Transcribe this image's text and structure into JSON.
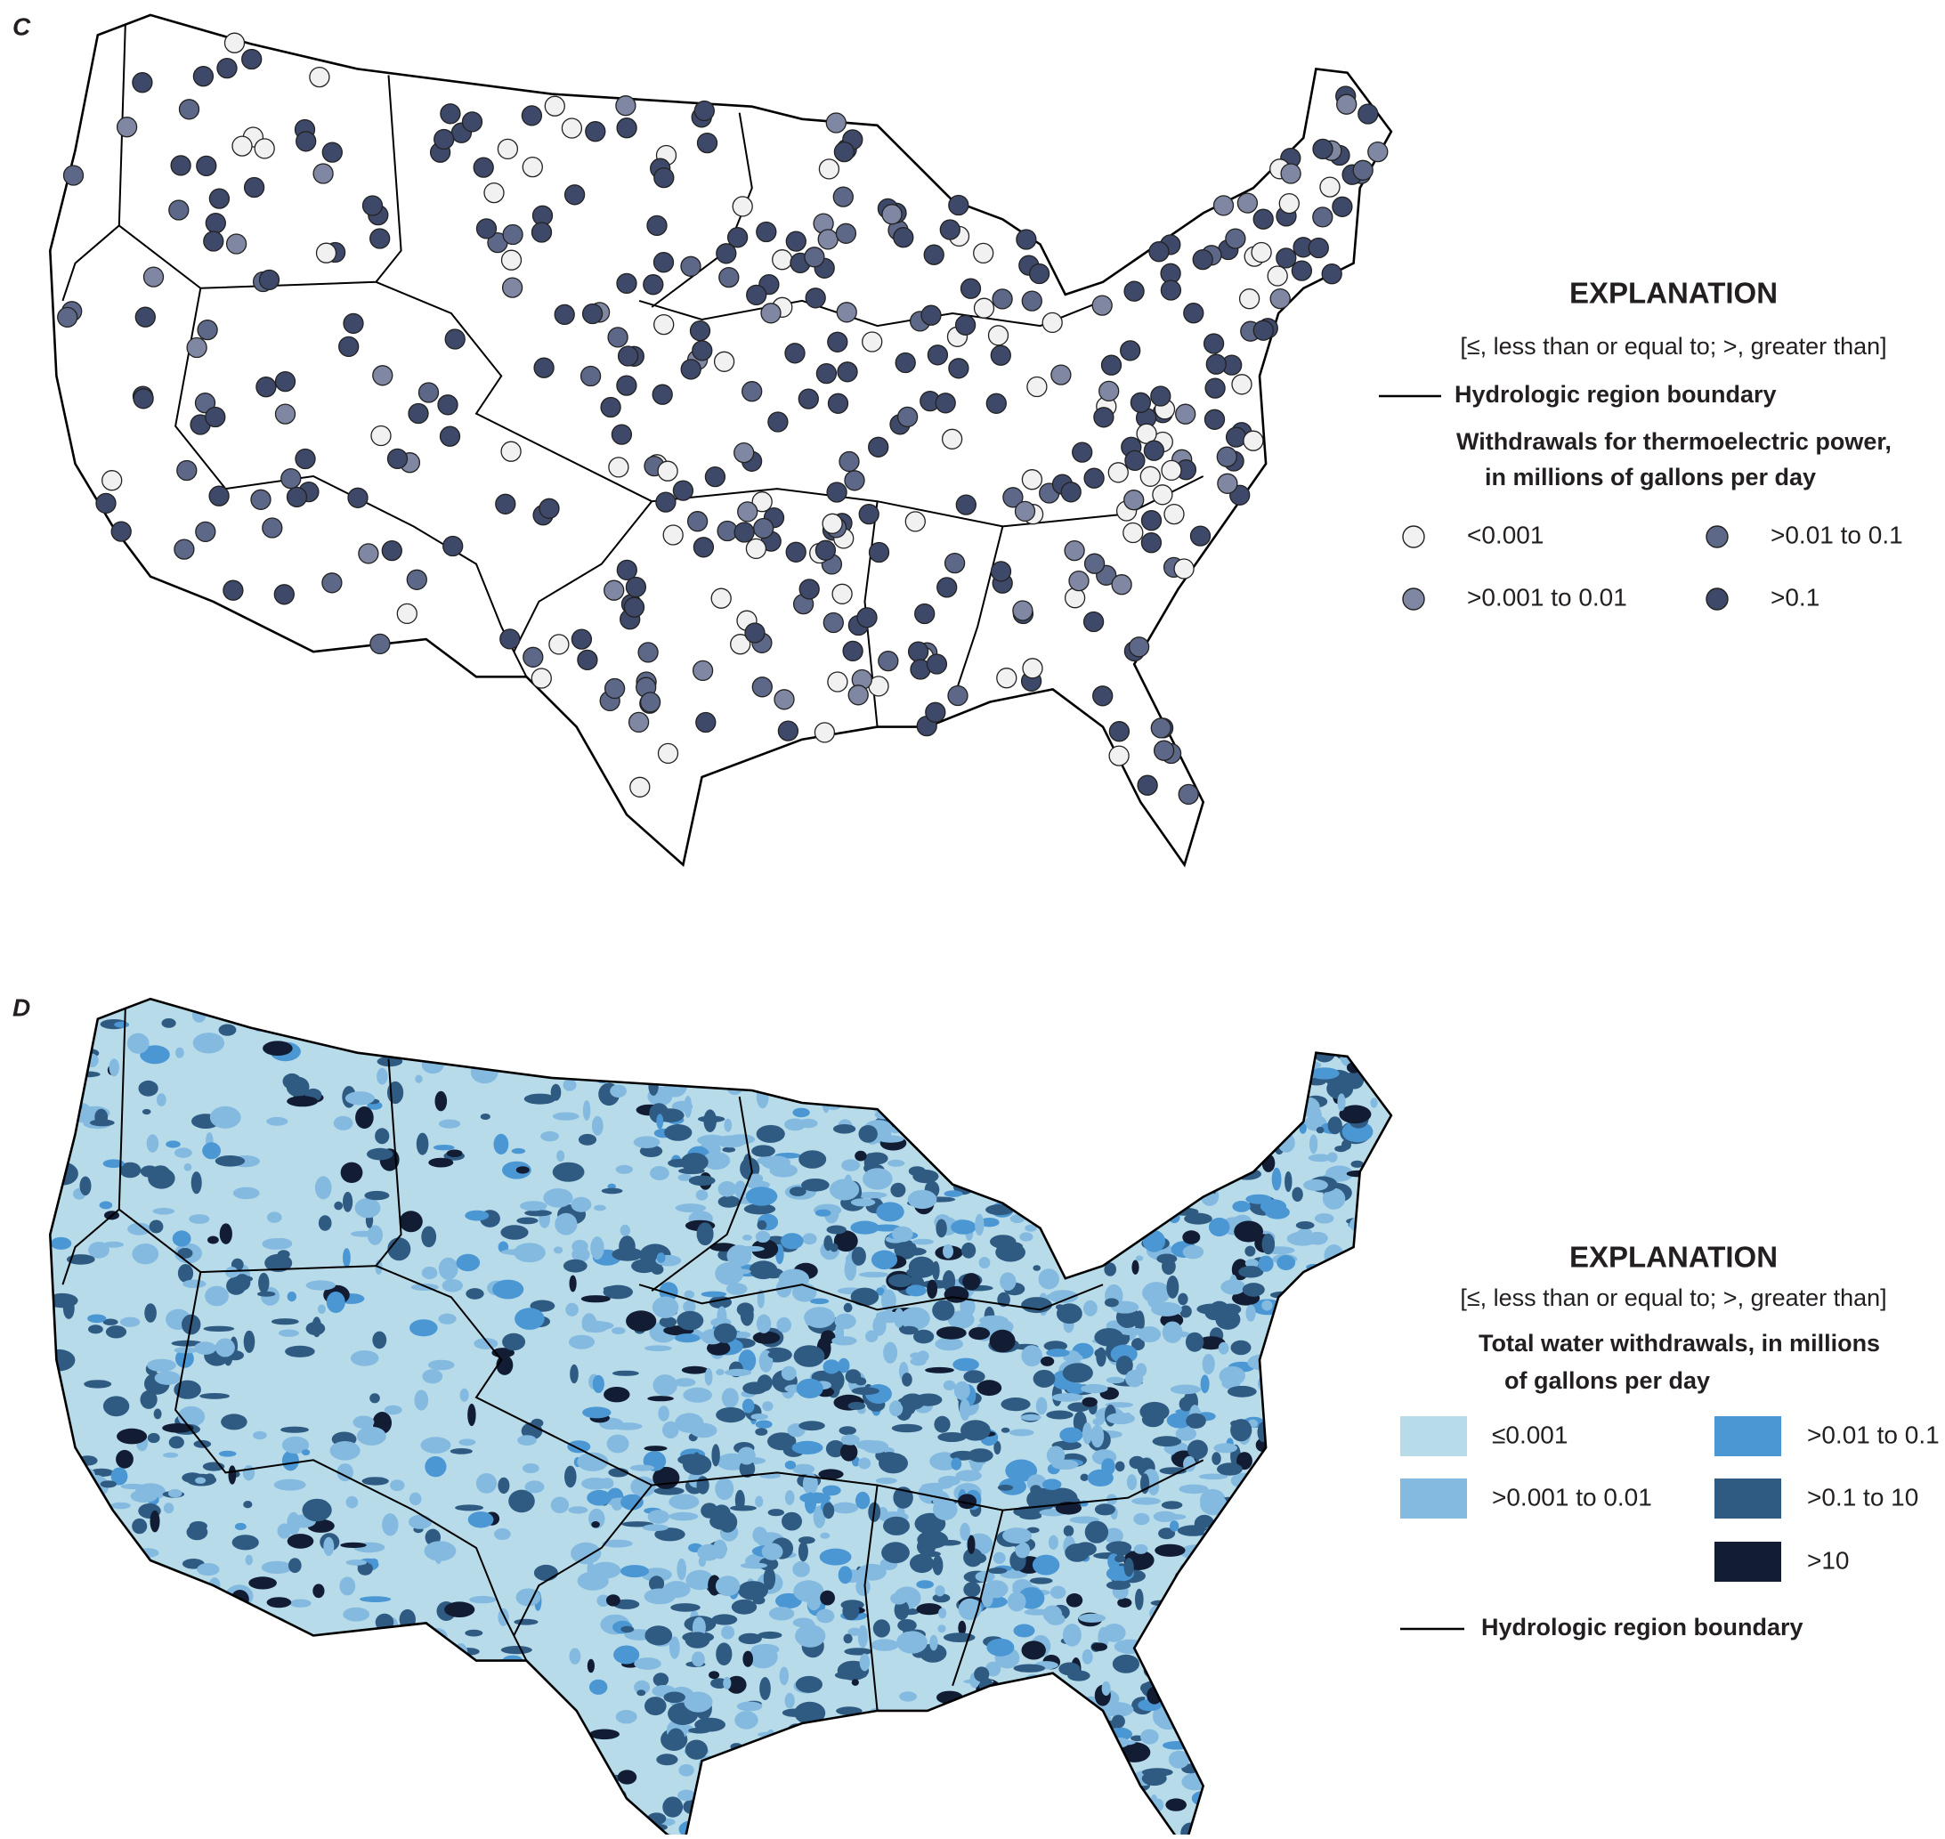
{
  "panels": [
    {
      "label": "C",
      "explanation": {
        "title": "EXPLANATION",
        "note": "[≤, less than or equal to; >, greater than]",
        "boundary": "Hydrologic region boundary",
        "heading_lines": [
          "Withdrawals for thermoelectric power,",
          "in millions of gallons per day"
        ],
        "items": [
          {
            "label": "<0.001",
            "color": "#f1f1f1"
          },
          {
            "label": ">0.001 to 0.01",
            "color": "#7f87a3"
          },
          {
            "label": ">0.01 to 0.1",
            "color": "#5d6888"
          },
          {
            "label": ">0.1",
            "color": "#3e4969"
          }
        ]
      }
    },
    {
      "label": "D",
      "explanation": {
        "title": "EXPLANATION",
        "note": "[≤, less than or equal to; >, greater than]",
        "boundary": "Hydrologic region boundary",
        "heading_lines": [
          "Total water withdrawals, in millions",
          "of gallons per day"
        ],
        "items": [
          {
            "label": "≤0.001",
            "color": "#b7dbe9"
          },
          {
            "label": ">0.001 to 0.01",
            "color": "#84badf"
          },
          {
            "label": ">0.01 to 0.1",
            "color": "#4b97d4"
          },
          {
            "label": ">0.1 to 10",
            "color": "#2f5a82"
          },
          {
            "label": ">10",
            "color": "#121c33"
          }
        ]
      }
    }
  ]
}
